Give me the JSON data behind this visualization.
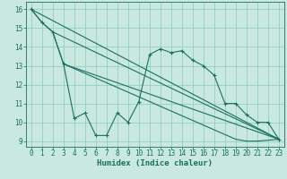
{
  "xlabel": "Humidex (Indice chaleur)",
  "xlim": [
    -0.5,
    23.5
  ],
  "ylim": [
    8.7,
    16.4
  ],
  "yticks": [
    9,
    10,
    11,
    12,
    13,
    14,
    15,
    16
  ],
  "xticks": [
    0,
    1,
    2,
    3,
    4,
    5,
    6,
    7,
    8,
    9,
    10,
    11,
    12,
    13,
    14,
    15,
    16,
    17,
    18,
    19,
    20,
    21,
    22,
    23
  ],
  "bg_color": "#c8e8e0",
  "grid_color": "#88ccbb",
  "line_color": "#1a7060",
  "main_x": [
    0,
    1,
    2,
    3,
    4,
    5,
    6,
    7,
    8,
    9,
    10,
    11,
    12,
    13,
    14,
    15,
    16,
    17,
    18,
    19,
    20,
    21,
    22,
    23
  ],
  "main_y": [
    16.0,
    15.3,
    14.8,
    13.1,
    10.2,
    10.5,
    9.3,
    9.3,
    10.5,
    10.0,
    11.1,
    13.6,
    13.9,
    13.7,
    13.8,
    13.3,
    13.0,
    12.5,
    11.0,
    11.0,
    10.4,
    10.0,
    10.0,
    9.1
  ],
  "trend1_x": [
    0,
    23
  ],
  "trend1_y": [
    16.0,
    9.1
  ],
  "trend2_x": [
    2,
    23
  ],
  "trend2_y": [
    14.8,
    9.1
  ],
  "trend3_x": [
    3,
    23
  ],
  "trend3_y": [
    13.1,
    9.1
  ],
  "smooth_x": [
    0,
    1,
    2,
    3,
    4,
    5,
    6,
    7,
    8,
    9,
    10,
    11,
    12,
    13,
    14,
    15,
    16,
    17,
    18,
    19,
    20,
    21,
    22,
    23
  ],
  "smooth_y": [
    16.0,
    15.3,
    14.8,
    13.1,
    12.85,
    12.6,
    12.35,
    12.1,
    11.85,
    11.6,
    11.35,
    11.1,
    10.85,
    10.6,
    10.35,
    10.1,
    9.85,
    9.6,
    9.35,
    9.1,
    9.0,
    9.0,
    9.05,
    9.1
  ],
  "lw": 0.8,
  "ms": 3.5,
  "font_tick": 5.5,
  "font_label": 6.5
}
